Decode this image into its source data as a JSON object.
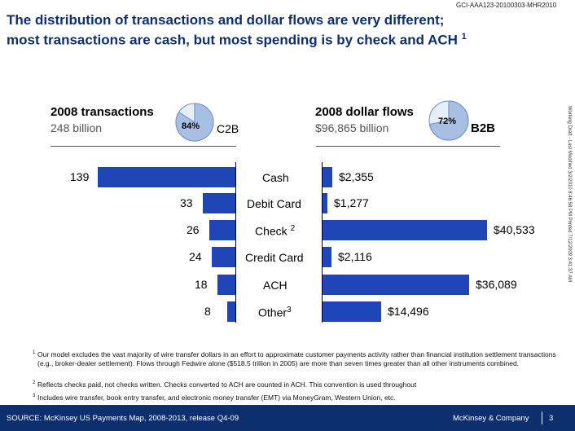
{
  "doc_id": "GCI-AAA123-20100303-MHR2010",
  "title_line1": "The distribution of transactions and dollar flows are very different;",
  "title_line2": "most transactions are cash, but most spending is by check and ACH",
  "title_sup": "1",
  "side_text": "Working Draft - Last Modified 3/2/2010 8:46:58 PM    Printed 7/12/2009 3:41:37 AM",
  "colors": {
    "bar": "#1f45b8",
    "pie_fill": "#a7bfe3",
    "navy": "#0d2f6e"
  },
  "left_panel": {
    "title": "2008 transactions",
    "subtitle": "248 billion",
    "pie_pct": "84%",
    "pie_label": "C2B",
    "pie_value": 0.84
  },
  "right_panel": {
    "title": "2008 dollar flows",
    "subtitle": "$96,865 billion",
    "pie_pct": "72%",
    "pie_label": "B2B",
    "pie_value": 0.72
  },
  "chart_data": {
    "type": "bar",
    "categories": [
      "Cash",
      "Debit Card",
      "Check",
      "Credit Card",
      "ACH",
      "Other"
    ],
    "category_sups": [
      "",
      "",
      "2",
      "",
      "",
      "3"
    ],
    "series": [
      {
        "name": "2008 transactions",
        "values": [
          139,
          33,
          26,
          24,
          18,
          8
        ],
        "labels": [
          "139",
          "33",
          "26",
          "24",
          "18",
          "8"
        ]
      },
      {
        "name": "2008 dollar flows",
        "values": [
          2355,
          1277,
          40533,
          2116,
          36089,
          14496
        ],
        "labels": [
          "$2,355",
          "$1,277",
          "$40,533",
          "$2,116",
          "$36,089",
          "$14,496"
        ]
      }
    ]
  },
  "footnotes": {
    "n1_mark": "1",
    "n1": "Our model excludes the vast majority of wire transfer dollars in an effort to approximate customer payments activity rather than financial institution settlement transactions (e.g., broker-dealer settlement). Flows through Fedwire alone ($518.5 trillion in 2005) are more than seven times greater than all other instruments combined.",
    "n2_mark": "2",
    "n2": "Reflects checks paid, not checks written.  Checks converted to ACH are counted in ACH.  This convention is used throughout",
    "n3_mark": "3",
    "n3": "Includes wire transfer, book entry transfer, and electronic money transfer (EMT) via MoneyGram, Western Union, etc."
  },
  "footer": {
    "source": "SOURCE: McKinsey US Payments Map, 2008-2013, release Q4-09",
    "brand": "McKinsey & Company",
    "page": "3"
  }
}
